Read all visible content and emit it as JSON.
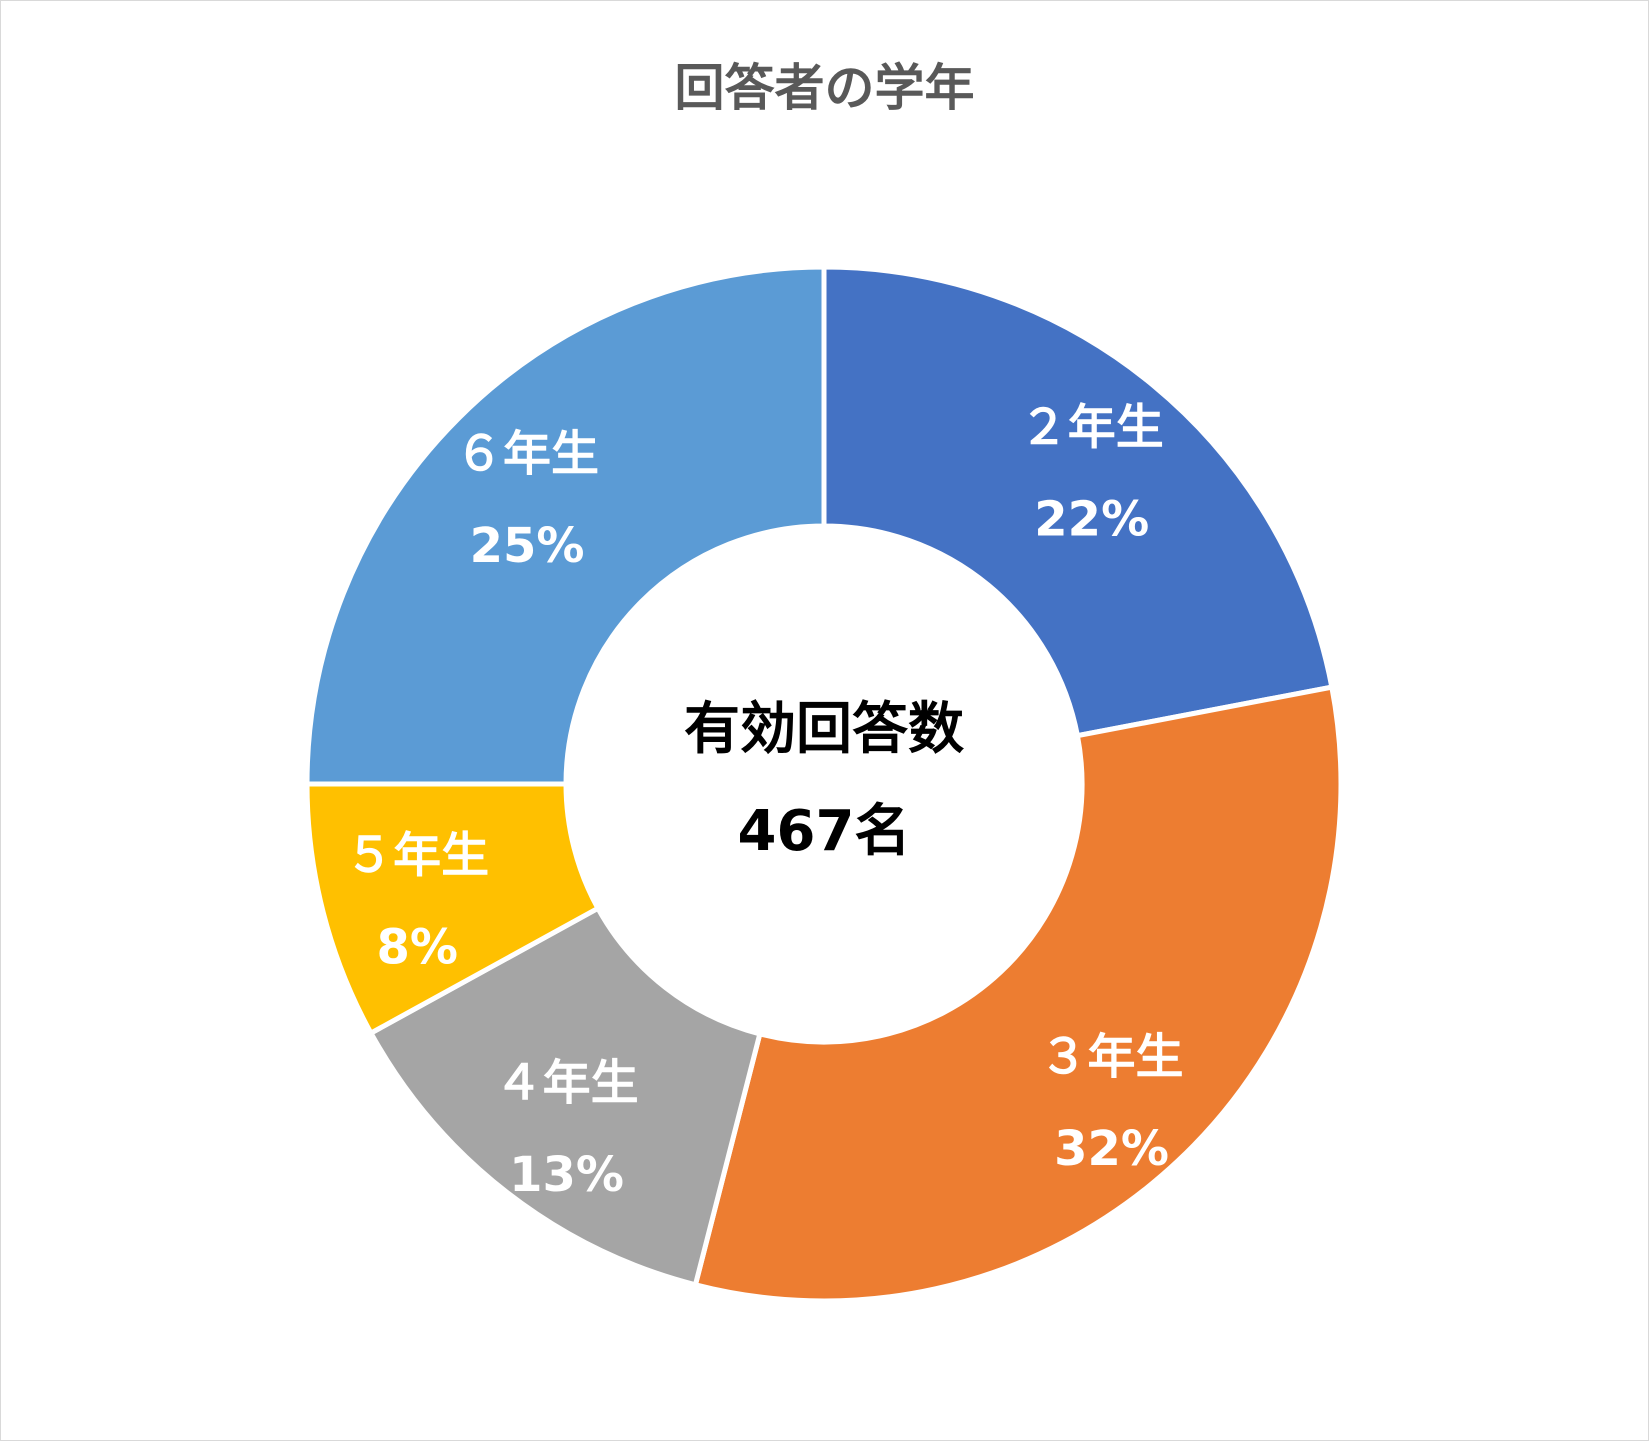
{
  "chart_data": {
    "type": "pie",
    "title": "回答者の学年",
    "center_label": "有効回答数",
    "center_value": "467名",
    "slices": [
      {
        "category": "2年生",
        "name_label": "２年生",
        "value": 22,
        "percent_label": "22%",
        "color": "#4472C4"
      },
      {
        "category": "3年生",
        "name_label": "３年生",
        "value": 32,
        "percent_label": "32%",
        "color": "#ED7D31"
      },
      {
        "category": "4年生",
        "name_label": "４年生",
        "value": 13,
        "percent_label": "13%",
        "color": "#A5A5A5"
      },
      {
        "category": "5年生",
        "name_label": "５年生",
        "value": 8,
        "percent_label": "8%",
        "color": "#FFC000"
      },
      {
        "category": "6年生",
        "name_label": "６年生",
        "value": 25,
        "percent_label": "25%",
        "color": "#5B9BD5"
      }
    ],
    "legend": "none",
    "start_angle_deg": 0,
    "direction": "clockwise"
  }
}
